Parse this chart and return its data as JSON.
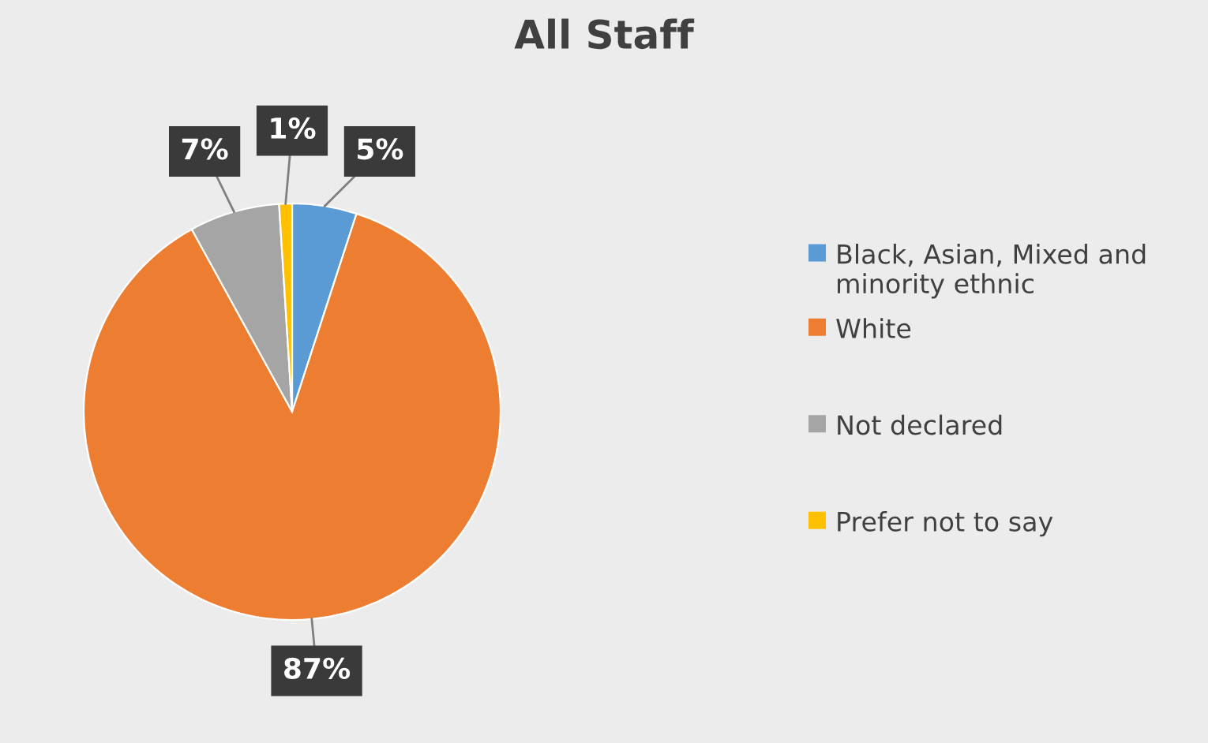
{
  "chart_data": {
    "type": "pie",
    "title": "All Staff",
    "categories": [
      "Black, Asian, Mixed and minority ethnic",
      "White",
      "Not declared",
      "Prefer not to say"
    ],
    "values": [
      5,
      87,
      7,
      1
    ],
    "colors": [
      "#5b9bd5",
      "#ed7d31",
      "#a5a5a5",
      "#ffc000"
    ],
    "value_labels": [
      "5%",
      "87%",
      "7%",
      "1%"
    ],
    "legend": "right"
  }
}
